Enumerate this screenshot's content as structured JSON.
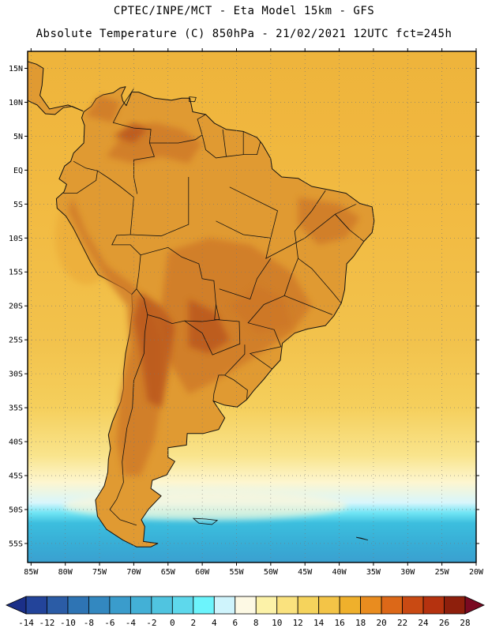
{
  "header": {
    "line1": "CPTEC/INPE/MCT -  Eta Model 15km - GFS",
    "line2": "Absolute Temperature (C) 850hPa - 21/02/2021 12UTC fct=245h"
  },
  "map": {
    "lat_labels": [
      "15N",
      "10N",
      "5N",
      "EQ",
      "5S",
      "10S",
      "15S",
      "20S",
      "25S",
      "30S",
      "35S",
      "40S",
      "45S",
      "50S",
      "55S"
    ],
    "lat_values": [
      15,
      10,
      5,
      0,
      -5,
      -10,
      -15,
      -20,
      -25,
      -30,
      -35,
      -40,
      -45,
      -50,
      -55
    ],
    "lon_labels": [
      "85W",
      "80W",
      "75W",
      "70W",
      "65W",
      "60W",
      "55W",
      "50W",
      "45W",
      "40W",
      "35W",
      "30W",
      "25W",
      "20W"
    ],
    "lon_values": [
      -85,
      -80,
      -75,
      -70,
      -65,
      -60,
      -55,
      -50,
      -45,
      -40,
      -35,
      -30,
      -25,
      -20
    ],
    "lat_range": [
      -57.8,
      17.5
    ],
    "lon_range": [
      -85.5,
      -20
    ],
    "grid": "dotted",
    "ocean_gradient": [
      {
        "lat": 17,
        "color": "#eeb43c"
      },
      {
        "lat": 5,
        "color": "#f0b73e"
      },
      {
        "lat": -10,
        "color": "#f2bc44"
      },
      {
        "lat": -25,
        "color": "#f2c24c"
      },
      {
        "lat": -35,
        "color": "#f5cf5c"
      },
      {
        "lat": -42,
        "color": "#f9e48c"
      },
      {
        "lat": -46,
        "color": "#fdf6d0"
      },
      {
        "lat": -49,
        "color": "#d8f6fc"
      },
      {
        "lat": -50.5,
        "color": "#70e4f4"
      },
      {
        "lat": -52,
        "color": "#3cbede"
      },
      {
        "lat": -55,
        "color": "#38aed6"
      },
      {
        "lat": -57.8,
        "color": "#3aa0d0"
      }
    ],
    "land_color": "#e09a32",
    "hot_color": "#b9551a",
    "warm_color": "#cd7626"
  },
  "colorbar": {
    "labels": [
      "-14",
      "-12",
      "-10",
      "-8",
      "-6",
      "-4",
      "-2",
      "0",
      "2",
      "4",
      "6",
      "8",
      "10",
      "12",
      "14",
      "16",
      "18",
      "20",
      "22",
      "24",
      "26",
      "28"
    ],
    "colors": [
      "#23449a",
      "#2b5ca6",
      "#2e74b4",
      "#3388c0",
      "#3a9ccc",
      "#43b0d6",
      "#50c4e0",
      "#5ed8ec",
      "#6cf4fc",
      "#cff4fc",
      "#fdf9e4",
      "#fcf2a8",
      "#fae27e",
      "#f5d35c",
      "#f3c447",
      "#efb02c",
      "#e98c1f",
      "#dc6818",
      "#c94a13",
      "#b5320f",
      "#8e1f0c"
    ],
    "end_colors": [
      "#1b2f88",
      "#7a0a22"
    ]
  }
}
